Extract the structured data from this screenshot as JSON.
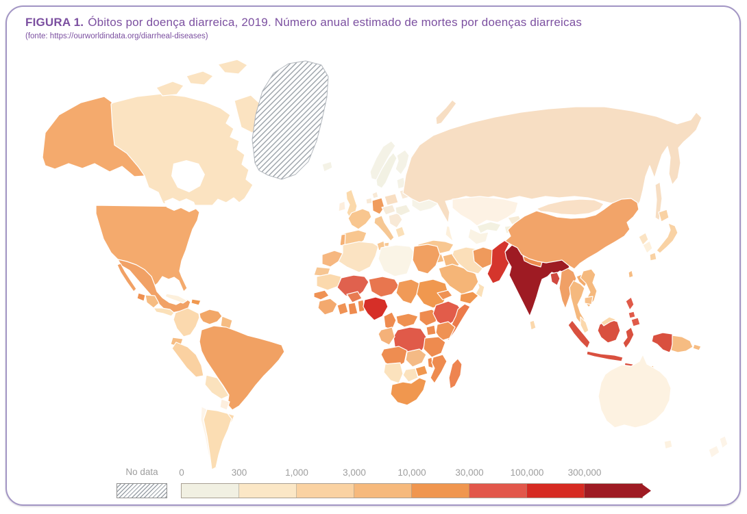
{
  "figure": {
    "title_prefix": "FIGURA 1.",
    "title_rest": "Óbitos por doença diarreica, 2019. Número anual estimado de mortes por doenças diarreicas",
    "source": "(fonte: https://ourworldindata.org/diarrheal-diseases)",
    "accent_color": "#7b4fa0",
    "frame_border_color": "#a295c4"
  },
  "legend": {
    "no_data_label": "No data",
    "ticks": [
      "0",
      "300",
      "1,000",
      "3,000",
      "10,000",
      "30,000",
      "100,000",
      "300,000"
    ],
    "colors": [
      "#f1f0e2",
      "#fbe7c6",
      "#fad2a2",
      "#f6b97c",
      "#f0964f",
      "#e2574a",
      "#d62b22",
      "#9e1b23"
    ],
    "tick_text_color": "#9d9d9d"
  },
  "map": {
    "ocean_color": "#ffffff",
    "border_color": "#ffffff",
    "no_data_pattern": "gray-diagonal-hatch",
    "countries": {
      "russia": "#f7dec3",
      "novaya-zemlya": "#f7dec3",
      "sakhalin": "#f7dec3",
      "kazakhstan": "#fdf2e4",
      "uzbekistan": "#f3f1e1",
      "turkmenistan": "#faf3e4",
      "kyrgyzstan": "#f6ead4",
      "tajikistan": "#f4f0de",
      "caucasus": "#fdf0dc",
      "canada": "#fbe3c1",
      "alaska": "#f4aa6d",
      "arctic-1": "#fbe3c1",
      "arctic-2": "#fbe3c1",
      "arctic-3": "#fbe3c1",
      "baffin": "#fbe3c1",
      "greenland": "nodata",
      "usa": "#f4aa6d",
      "mexico": "#f1a165",
      "baja": "#f1a165",
      "guatemala": "#ef9151",
      "honduras-nicaragua": "#f6bc82",
      "costa-panama": "#fbe0b8",
      "cuba": "#fdf0dc",
      "hispaniola": "#f0984f",
      "colombia": "#fbd9ae",
      "venezuela": "#f2a767",
      "guyanas": "#f6bc82",
      "ecuador": "#f6bc82",
      "peru": "#fad1a1",
      "brazil": "#f1a163",
      "bolivia": "#fbe2bd",
      "paraguay": "#fdeedd",
      "uruguay": "#fbd8ac",
      "chile": "#fdf4e8",
      "argentina": "#fbddb3",
      "iceland": "#f4f2e6",
      "uk": "#fbd9ab",
      "ireland": "#fdeedd",
      "norway": "#f4f2e6",
      "sweden": "#f2f1e3",
      "finland": "#f4f2e6",
      "denmark": "#f8e9d6",
      "baltics": "#f4f2e6",
      "belarus": "#f8e9d6",
      "poland": "#f8dec2",
      "germany": "#f09c5d",
      "benelux": "#f8e9d6",
      "france": "#f8c68f",
      "spain": "#f8c68f",
      "portugal": "#f5b074",
      "italy": "#f6c793",
      "sicily": "#f6c793",
      "austria-blob": "#f6ead8",
      "balkans": "#f8e9d6",
      "greece": "#fbe0b8",
      "romania": "#f3efdf",
      "ukraine": "#f6f3e7",
      "turkey": "#f8c791",
      "syria": "#f6bc82",
      "israel-jordan": "#fbe0b8",
      "iraq": "#f6ba7e",
      "saudi": "#f5b577",
      "yemen": "#f0964f",
      "oman": "#fbe0b8",
      "iran": "#fbdfb9",
      "afghanistan": "#ef9a5c",
      "pakistan": "#d5352c",
      "india": "#9e1b23",
      "nepal": "#ee8b4f",
      "bangladesh": "#d0493f",
      "myanmar": "#f0a066",
      "sri-lanka": "#fbd8ac",
      "china": "#f2a469",
      "mongolia": "#f9e0c6",
      "taiwan": "#f6bc82",
      "north-korea": "#fbe3c3",
      "south-korea": "#fdf0dc",
      "hokkaido": "#f9d2a4",
      "honshu": "#f9d2a4",
      "kyushu": "#f9d2a4",
      "laos": "#f3ab6c",
      "vietnam": "#f5b97e",
      "thailand": "#f5b97e",
      "cambodia": "#f7c08a",
      "malay-peninsula": "#fbd8ac",
      "sumatra": "#d9503f",
      "java": "#d9503f",
      "borneo": "#d9503f",
      "malaysia-borneo": "#fbd8ac",
      "sulawesi": "#d9503f",
      "lesser-sunda-1": "#d9503f",
      "lesser-sunda-2": "#d9503f",
      "timor": "#f6bc82",
      "indo-papua": "#d9503f",
      "png": "#f6bc82",
      "new-britain": "#f6bc82",
      "luzon": "#e05a49",
      "visayas": "#e05a49",
      "mindanao": "#e05a49",
      "australia": "#fdf2e1",
      "tasmania": "#fdf2e1",
      "nz-north": "#fdf4e8",
      "nz-south": "#fdf4e8",
      "morocco": "#f6b780",
      "w-sahara": "#f7c692",
      "algeria": "#fbe3c2",
      "tunisia": "#f8c791",
      "libya": "#faf4e6",
      "egypt": "#f1a061",
      "mauritania": "#fbd9ad",
      "mali": "#e0614e",
      "niger": "#e8764f",
      "chad": "#f09a57",
      "sudan": "#f0984f",
      "senegal": "#ef9254",
      "guinea-blob": "#f3a96e",
      "ivory-coast": "#ef9254",
      "ghana": "#ee8b4f",
      "burkina": "#e87b52",
      "benin-togo": "#ee8b4f",
      "nigeria": "#d62f28",
      "cameroon": "#ee8b4f",
      "car": "#ef9151",
      "south-sudan": "#ee8b4f",
      "ethiopia": "#e25c4a",
      "eritrea": "#ef9254",
      "somalia": "#eb7a4a",
      "kenya": "#ef9254",
      "uganda": "#ee8b4f",
      "drc": "#e05a49",
      "congo-gabon": "#f4b179",
      "tanzania": "#ee8b4f",
      "angola": "#ee8d51",
      "zambia": "#f4ba85",
      "malawi": "#ee8b4f",
      "mozambique": "#ee8b4f",
      "zimbabwe": "#f0974f",
      "botswana": "#fbe2bd",
      "namibia": "#fbe2bd",
      "south-africa": "#f0974f",
      "madagascar": "#ee8450"
    }
  }
}
